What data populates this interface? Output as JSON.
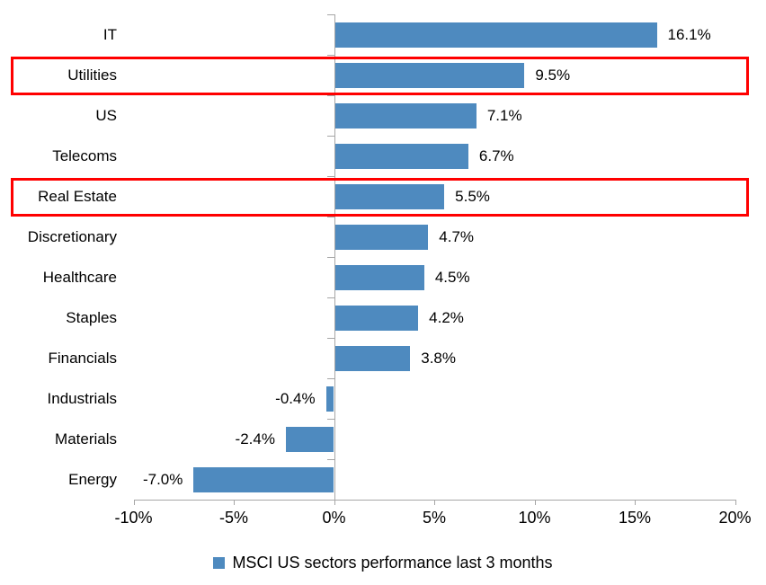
{
  "chart_data": {
    "type": "bar",
    "orientation": "horizontal",
    "title": "",
    "xlabel": "",
    "ylabel": "",
    "grid": false,
    "legend_position": "bottom",
    "legend": "MSCI US sectors performance last 3 months",
    "bar_color": "#4E8ABF",
    "highlight_color": "#FF0000",
    "axis_color": "#A6A6A6",
    "xlim": [
      -10,
      20
    ],
    "x_ticks": [
      {
        "value": -10,
        "label": "-10%"
      },
      {
        "value": -5,
        "label": "-5%"
      },
      {
        "value": 0,
        "label": "0%"
      },
      {
        "value": 5,
        "label": "5%"
      },
      {
        "value": 10,
        "label": "10%"
      },
      {
        "value": 15,
        "label": "15%"
      },
      {
        "value": 20,
        "label": "20%"
      }
    ],
    "categories": [
      "IT",
      "Utilities",
      "US",
      "Telecoms",
      "Real Estate",
      "Discretionary",
      "Healthcare",
      "Staples",
      "Financials",
      "Industrials",
      "Materials",
      "Energy"
    ],
    "sectors": [
      {
        "label": "IT",
        "value": 16.1,
        "display": "16.1%",
        "highlighted": false
      },
      {
        "label": "Utilities",
        "value": 9.5,
        "display": "9.5%",
        "highlighted": true
      },
      {
        "label": "US",
        "value": 7.1,
        "display": "7.1%",
        "highlighted": false
      },
      {
        "label": "Telecoms",
        "value": 6.7,
        "display": "6.7%",
        "highlighted": false
      },
      {
        "label": "Real Estate",
        "value": 5.5,
        "display": "5.5%",
        "highlighted": true
      },
      {
        "label": "Discretionary",
        "value": 4.7,
        "display": "4.7%",
        "highlighted": false
      },
      {
        "label": "Healthcare",
        "value": 4.5,
        "display": "4.5%",
        "highlighted": false
      },
      {
        "label": "Staples",
        "value": 4.2,
        "display": "4.2%",
        "highlighted": false
      },
      {
        "label": "Financials",
        "value": 3.8,
        "display": "3.8%",
        "highlighted": false
      },
      {
        "label": "Industrials",
        "value": -0.4,
        "display": "-0.4%",
        "highlighted": false
      },
      {
        "label": "Materials",
        "value": -2.4,
        "display": "-2.4%",
        "highlighted": false
      },
      {
        "label": "Energy",
        "value": -7.0,
        "display": "-7.0%",
        "highlighted": false
      }
    ]
  }
}
